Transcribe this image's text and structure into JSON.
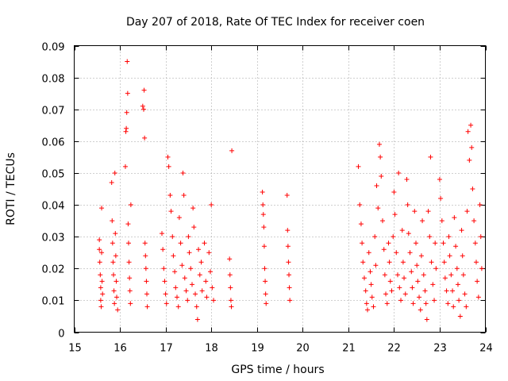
{
  "chart_data": {
    "type": "scatter",
    "title": "Day 207 of 2018, Rate Of TEC Index for receiver coen",
    "xlabel": "GPS time / hours",
    "ylabel": "ROTI / TECUs",
    "xlim": [
      15,
      24
    ],
    "ylim": [
      0,
      0.09
    ],
    "xticks": [
      15,
      16,
      17,
      18,
      19,
      20,
      21,
      22,
      23,
      24
    ],
    "yticks": [
      0,
      0.01,
      0.02,
      0.03,
      0.04,
      0.05,
      0.06,
      0.07,
      0.08,
      0.09
    ],
    "xtick_labels": [
      "15",
      "16",
      "17",
      "18",
      "19",
      "20",
      "21",
      "22",
      "23",
      "24"
    ],
    "ytick_labels": [
      "0",
      "0.01",
      "0.02",
      "0.03",
      "0.04",
      "0.05",
      "0.06",
      "0.07",
      "0.08",
      "0.09"
    ],
    "grid": true,
    "marker": "+",
    "color": "#ff0000",
    "series": [
      {
        "name": "ROTI",
        "points": [
          [
            15.55,
            0.029
          ],
          [
            15.55,
            0.026
          ],
          [
            15.56,
            0.022
          ],
          [
            15.57,
            0.018
          ],
          [
            15.58,
            0.014
          ],
          [
            15.58,
            0.01
          ],
          [
            15.59,
            0.008
          ],
          [
            15.6,
            0.039
          ],
          [
            15.6,
            0.025
          ],
          [
            15.61,
            0.016
          ],
          [
            15.62,
            0.012
          ],
          [
            15.82,
            0.047
          ],
          [
            15.83,
            0.035
          ],
          [
            15.84,
            0.028
          ],
          [
            15.85,
            0.022
          ],
          [
            15.86,
            0.018
          ],
          [
            15.87,
            0.013
          ],
          [
            15.88,
            0.009
          ],
          [
            15.89,
            0.05
          ],
          [
            15.9,
            0.031
          ],
          [
            15.91,
            0.024
          ],
          [
            15.92,
            0.016
          ],
          [
            15.93,
            0.011
          ],
          [
            15.95,
            0.007
          ],
          [
            16.12,
            0.052
          ],
          [
            16.13,
            0.063
          ],
          [
            16.14,
            0.064
          ],
          [
            16.15,
            0.069
          ],
          [
            16.16,
            0.085
          ],
          [
            16.17,
            0.075
          ],
          [
            16.18,
            0.034
          ],
          [
            16.19,
            0.028
          ],
          [
            16.2,
            0.022
          ],
          [
            16.21,
            0.017
          ],
          [
            16.22,
            0.013
          ],
          [
            16.23,
            0.009
          ],
          [
            16.24,
            0.04
          ],
          [
            16.5,
            0.071
          ],
          [
            16.52,
            0.07
          ],
          [
            16.53,
            0.076
          ],
          [
            16.54,
            0.061
          ],
          [
            16.55,
            0.028
          ],
          [
            16.56,
            0.024
          ],
          [
            16.57,
            0.02
          ],
          [
            16.58,
            0.016
          ],
          [
            16.59,
            0.012
          ],
          [
            16.6,
            0.008
          ],
          [
            16.92,
            0.031
          ],
          [
            16.94,
            0.026
          ],
          [
            16.96,
            0.02
          ],
          [
            16.98,
            0.016
          ],
          [
            17.0,
            0.012
          ],
          [
            17.02,
            0.009
          ],
          [
            17.05,
            0.055
          ],
          [
            17.07,
            0.052
          ],
          [
            17.1,
            0.043
          ],
          [
            17.12,
            0.038
          ],
          [
            17.15,
            0.03
          ],
          [
            17.17,
            0.024
          ],
          [
            17.2,
            0.019
          ],
          [
            17.22,
            0.014
          ],
          [
            17.25,
            0.011
          ],
          [
            17.28,
            0.008
          ],
          [
            17.3,
            0.036
          ],
          [
            17.33,
            0.028
          ],
          [
            17.36,
            0.021
          ],
          [
            17.38,
            0.05
          ],
          [
            17.4,
            0.043
          ],
          [
            17.42,
            0.017
          ],
          [
            17.45,
            0.013
          ],
          [
            17.48,
            0.01
          ],
          [
            17.5,
            0.03
          ],
          [
            17.52,
            0.025
          ],
          [
            17.55,
            0.02
          ],
          [
            17.58,
            0.015
          ],
          [
            17.6,
            0.039
          ],
          [
            17.62,
            0.033
          ],
          [
            17.65,
            0.012
          ],
          [
            17.68,
            0.008
          ],
          [
            17.7,
            0.004
          ],
          [
            17.72,
            0.026
          ],
          [
            17.75,
            0.018
          ],
          [
            17.78,
            0.022
          ],
          [
            17.8,
            0.013
          ],
          [
            17.85,
            0.028
          ],
          [
            17.88,
            0.016
          ],
          [
            17.9,
            0.011
          ],
          [
            17.95,
            0.025
          ],
          [
            17.98,
            0.019
          ],
          [
            18.0,
            0.04
          ],
          [
            18.02,
            0.014
          ],
          [
            18.05,
            0.01
          ],
          [
            18.4,
            0.023
          ],
          [
            18.41,
            0.018
          ],
          [
            18.42,
            0.014
          ],
          [
            18.43,
            0.01
          ],
          [
            18.44,
            0.008
          ],
          [
            18.45,
            0.057
          ],
          [
            19.12,
            0.044
          ],
          [
            19.13,
            0.04
          ],
          [
            19.14,
            0.037
          ],
          [
            19.15,
            0.033
          ],
          [
            19.16,
            0.027
          ],
          [
            19.17,
            0.02
          ],
          [
            19.18,
            0.016
          ],
          [
            19.19,
            0.012
          ],
          [
            19.2,
            0.009
          ],
          [
            19.66,
            0.043
          ],
          [
            19.67,
            0.032
          ],
          [
            19.68,
            0.027
          ],
          [
            19.69,
            0.022
          ],
          [
            19.7,
            0.018
          ],
          [
            19.71,
            0.014
          ],
          [
            19.72,
            0.01
          ],
          [
            21.22,
            0.052
          ],
          [
            21.25,
            0.04
          ],
          [
            21.28,
            0.034
          ],
          [
            21.3,
            0.028
          ],
          [
            21.32,
            0.022
          ],
          [
            21.35,
            0.017
          ],
          [
            21.38,
            0.013
          ],
          [
            21.4,
            0.009
          ],
          [
            21.42,
            0.007
          ],
          [
            21.45,
            0.025
          ],
          [
            21.48,
            0.019
          ],
          [
            21.5,
            0.015
          ],
          [
            21.52,
            0.011
          ],
          [
            21.55,
            0.008
          ],
          [
            21.58,
            0.03
          ],
          [
            21.6,
            0.021
          ],
          [
            21.62,
            0.046
          ],
          [
            21.65,
            0.039
          ],
          [
            21.68,
            0.059
          ],
          [
            21.7,
            0.055
          ],
          [
            21.72,
            0.049
          ],
          [
            21.75,
            0.035
          ],
          [
            21.78,
            0.026
          ],
          [
            21.8,
            0.018
          ],
          [
            21.82,
            0.012
          ],
          [
            21.85,
            0.009
          ],
          [
            21.88,
            0.028
          ],
          [
            21.9,
            0.022
          ],
          [
            21.92,
            0.016
          ],
          [
            21.95,
            0.013
          ],
          [
            21.98,
            0.03
          ],
          [
            22.0,
            0.044
          ],
          [
            22.02,
            0.037
          ],
          [
            22.05,
            0.025
          ],
          [
            22.08,
            0.018
          ],
          [
            22.1,
            0.05
          ],
          [
            22.12,
            0.014
          ],
          [
            22.15,
            0.01
          ],
          [
            22.18,
            0.032
          ],
          [
            22.2,
            0.022
          ],
          [
            22.22,
            0.017
          ],
          [
            22.25,
            0.012
          ],
          [
            22.28,
            0.048
          ],
          [
            22.3,
            0.04
          ],
          [
            22.32,
            0.031
          ],
          [
            22.35,
            0.025
          ],
          [
            22.38,
            0.019
          ],
          [
            22.4,
            0.014
          ],
          [
            22.42,
            0.009
          ],
          [
            22.45,
            0.038
          ],
          [
            22.48,
            0.028
          ],
          [
            22.5,
            0.021
          ],
          [
            22.52,
            0.016
          ],
          [
            22.55,
            0.011
          ],
          [
            22.58,
            0.007
          ],
          [
            22.6,
            0.024
          ],
          [
            22.62,
            0.035
          ],
          [
            22.65,
            0.018
          ],
          [
            22.68,
            0.013
          ],
          [
            22.7,
            0.009
          ],
          [
            22.72,
            0.004
          ],
          [
            22.75,
            0.038
          ],
          [
            22.78,
            0.03
          ],
          [
            22.8,
            0.055
          ],
          [
            22.82,
            0.022
          ],
          [
            22.85,
            0.015
          ],
          [
            22.88,
            0.01
          ],
          [
            22.9,
            0.028
          ],
          [
            22.92,
            0.02
          ],
          [
            23.0,
            0.048
          ],
          [
            23.02,
            0.042
          ],
          [
            23.05,
            0.035
          ],
          [
            23.08,
            0.028
          ],
          [
            23.1,
            0.022
          ],
          [
            23.12,
            0.017
          ],
          [
            23.15,
            0.013
          ],
          [
            23.18,
            0.009
          ],
          [
            23.2,
            0.03
          ],
          [
            23.22,
            0.024
          ],
          [
            23.25,
            0.018
          ],
          [
            23.28,
            0.013
          ],
          [
            23.3,
            0.008
          ],
          [
            23.32,
            0.036
          ],
          [
            23.35,
            0.027
          ],
          [
            23.38,
            0.02
          ],
          [
            23.4,
            0.015
          ],
          [
            23.42,
            0.01
          ],
          [
            23.45,
            0.005
          ],
          [
            23.48,
            0.032
          ],
          [
            23.5,
            0.024
          ],
          [
            23.52,
            0.018
          ],
          [
            23.55,
            0.012
          ],
          [
            23.58,
            0.008
          ],
          [
            23.6,
            0.038
          ],
          [
            23.62,
            0.063
          ],
          [
            23.65,
            0.054
          ],
          [
            23.68,
            0.065
          ],
          [
            23.7,
            0.058
          ],
          [
            23.72,
            0.045
          ],
          [
            23.75,
            0.035
          ],
          [
            23.78,
            0.028
          ],
          [
            23.8,
            0.022
          ],
          [
            23.82,
            0.016
          ],
          [
            23.85,
            0.011
          ],
          [
            23.88,
            0.04
          ],
          [
            23.9,
            0.03
          ],
          [
            23.92,
            0.02
          ]
        ]
      }
    ]
  }
}
